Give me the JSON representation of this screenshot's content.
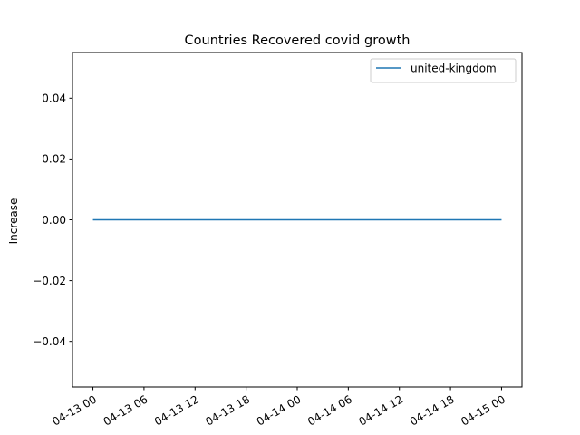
{
  "chart_data": {
    "type": "line",
    "title": "Countries Recovered covid growth",
    "xlabel": "",
    "ylabel": "Increase",
    "x": [
      "04-13 00",
      "04-13 06",
      "04-13 12",
      "04-13 18",
      "04-14 00",
      "04-14 06",
      "04-14 12",
      "04-14 18",
      "04-15 00"
    ],
    "xlim_hours": [
      -2.4,
      50.4
    ],
    "ylim": [
      -0.055,
      0.055
    ],
    "yticks": [
      {
        "value": 0.04,
        "label": "0.04"
      },
      {
        "value": 0.02,
        "label": "0.02"
      },
      {
        "value": 0.0,
        "label": "0.00"
      },
      {
        "value": -0.02,
        "label": "−0.02"
      },
      {
        "value": -0.04,
        "label": "−0.04"
      }
    ],
    "xticks": [
      {
        "hours": 0,
        "label": "04-13 00"
      },
      {
        "hours": 6,
        "label": "04-13 06"
      },
      {
        "hours": 12,
        "label": "04-13 12"
      },
      {
        "hours": 18,
        "label": "04-13 18"
      },
      {
        "hours": 24,
        "label": "04-14 00"
      },
      {
        "hours": 30,
        "label": "04-14 06"
      },
      {
        "hours": 36,
        "label": "04-14 12"
      },
      {
        "hours": 42,
        "label": "04-14 18"
      },
      {
        "hours": 48,
        "label": "04-15 00"
      }
    ],
    "series": [
      {
        "name": "united-kingdom",
        "color": "#1f77b4",
        "points": [
          {
            "hours": 0,
            "y": 0
          },
          {
            "hours": 24,
            "y": 0
          },
          {
            "hours": 48,
            "y": 0
          }
        ]
      }
    ],
    "grid": false,
    "legend": "top-right"
  }
}
